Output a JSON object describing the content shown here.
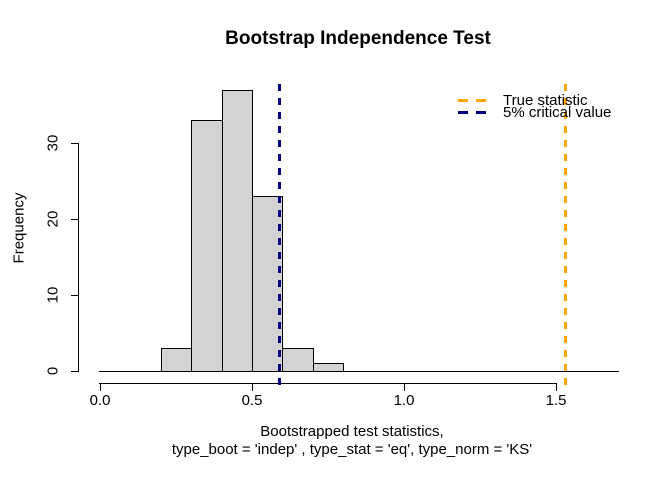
{
  "chart_data": {
    "type": "bar",
    "subtype": "histogram",
    "title": "Bootstrap Independence Test",
    "xlabel_line1": "Bootstrapped test statistics,",
    "xlabel_line2": "type_boot = 'indep' , type_stat = 'eq', type_norm = 'KS'",
    "ylabel": "Frequency",
    "bin_breaks": [
      0.2,
      0.3,
      0.4,
      0.5,
      0.6,
      0.7,
      0.8
    ],
    "bin_counts": [
      3,
      33,
      37,
      23,
      3,
      1
    ],
    "x_ticks": {
      "values": [
        0,
        0.5,
        1,
        1.5
      ],
      "labels": [
        "0.0",
        "0.5",
        "1.0",
        "1.5"
      ]
    },
    "y_ticks": {
      "values": [
        0,
        10,
        20,
        30
      ],
      "labels": [
        "0",
        "10",
        "20",
        "30"
      ]
    },
    "xlim": [
      0,
      1.72
    ],
    "ylim": [
      0,
      38
    ],
    "grid": false,
    "bar_fill_color": "#D3D3D3",
    "bar_border_color": "#000000",
    "vlines": [
      {
        "id": "true-statistic",
        "value": 1.53,
        "color": "#FFA500",
        "style": "dashed",
        "label": "True statistic"
      },
      {
        "id": "critical-value-5pct",
        "value": 0.59,
        "color": "#000080",
        "style": "dashed",
        "label": "5% critical value"
      }
    ],
    "legend": {
      "position": "topright",
      "box": false,
      "entries": [
        {
          "label": "True statistic",
          "color": "#FFA500",
          "line_style": "dashed"
        },
        {
          "label": "5% critical value",
          "color": "#000080",
          "line_style": "dashed"
        }
      ]
    }
  }
}
